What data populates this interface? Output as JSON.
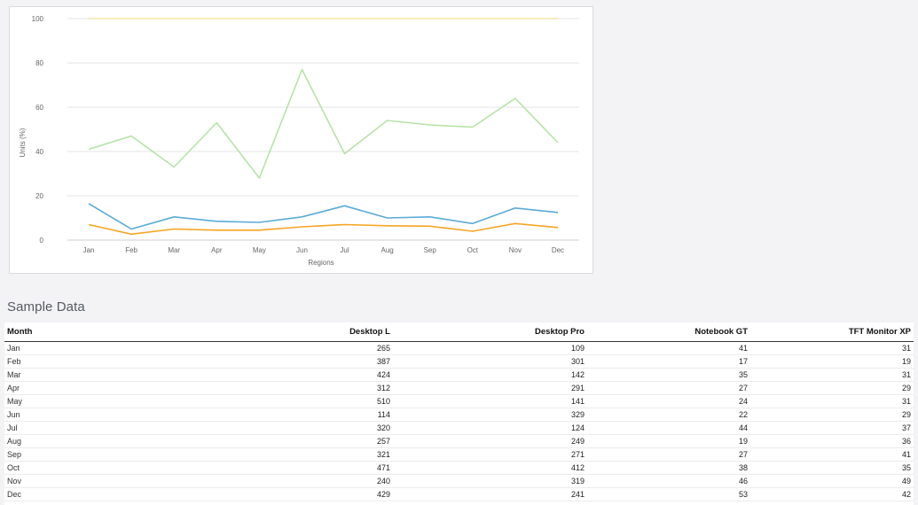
{
  "chart_data": {
    "type": "line",
    "xlabel": "Regions",
    "ylabel": "Units (%)",
    "categories": [
      "Jan",
      "Feb",
      "Mar",
      "Apr",
      "May",
      "Jun",
      "Jul",
      "Aug",
      "Sep",
      "Oct",
      "Nov",
      "Dec"
    ],
    "ylim": [
      0,
      100
    ],
    "yticks": [
      0,
      20,
      40,
      60,
      80,
      100
    ],
    "grid": true,
    "series": [
      {
        "color": "#f0e6a8",
        "values": [
          100,
          100,
          100,
          100,
          100,
          100,
          100,
          100,
          100,
          100,
          100,
          100
        ]
      },
      {
        "color": "#b6e3a8",
        "values": [
          41,
          47,
          33,
          53,
          28,
          77,
          39,
          54,
          52,
          51,
          64,
          44
        ]
      },
      {
        "color": "#5aabd6",
        "values": [
          16.5,
          5,
          10.5,
          8.5,
          8,
          10.5,
          15.5,
          10,
          10.5,
          7.5,
          14.5,
          12.5
        ]
      },
      {
        "color": "#f5a523",
        "values": [
          7,
          2.7,
          5,
          4.5,
          4.5,
          6,
          7,
          6.5,
          6.3,
          4,
          7.5,
          5.7
        ]
      }
    ]
  },
  "section_title": "Sample Data",
  "table": {
    "headers": [
      "Month",
      "Desktop L",
      "Desktop Pro",
      "Notebook GT",
      "TFT Monitor XP"
    ],
    "rows": [
      [
        "Jan",
        "265",
        "109",
        "41",
        "31"
      ],
      [
        "Feb",
        "387",
        "301",
        "17",
        "19"
      ],
      [
        "Mar",
        "424",
        "142",
        "35",
        "31"
      ],
      [
        "Apr",
        "312",
        "291",
        "27",
        "29"
      ],
      [
        "May",
        "510",
        "141",
        "24",
        "31"
      ],
      [
        "Jun",
        "114",
        "329",
        "22",
        "29"
      ],
      [
        "Jul",
        "320",
        "124",
        "44",
        "37"
      ],
      [
        "Aug",
        "257",
        "249",
        "19",
        "36"
      ],
      [
        "Sep",
        "321",
        "271",
        "27",
        "41"
      ],
      [
        "Oct",
        "471",
        "412",
        "38",
        "35"
      ],
      [
        "Nov",
        "240",
        "319",
        "46",
        "49"
      ],
      [
        "Dec",
        "429",
        "241",
        "53",
        "42"
      ]
    ]
  }
}
